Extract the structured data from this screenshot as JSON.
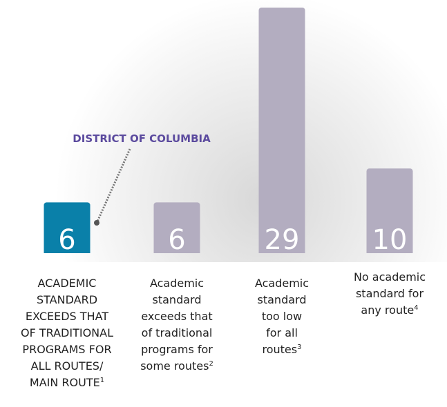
{
  "chart_data": {
    "type": "bar",
    "categories": [
      [
        "ACADEMIC",
        "STANDARD",
        "EXCEEDS THAT",
        "OF TRADITIONAL",
        "PROGRAMS FOR",
        "ALL ROUTES/",
        "MAIN ROUTE"
      ],
      [
        "Academic",
        "standard",
        "exceeds that",
        "of traditional",
        "programs for",
        "some routes"
      ],
      [
        "Academic",
        "standard",
        "too low",
        "for all",
        "routes"
      ],
      [
        "No academic",
        "standard for",
        "any route"
      ]
    ],
    "footnotes": [
      "1",
      "2",
      "3",
      "4"
    ],
    "values": [
      6,
      6,
      29,
      10
    ],
    "colors": [
      "#0a80a9",
      "#b3adc0",
      "#b3adc0",
      "#b3adc0"
    ],
    "annotation": "DISTRICT OF COLUMBIA"
  }
}
